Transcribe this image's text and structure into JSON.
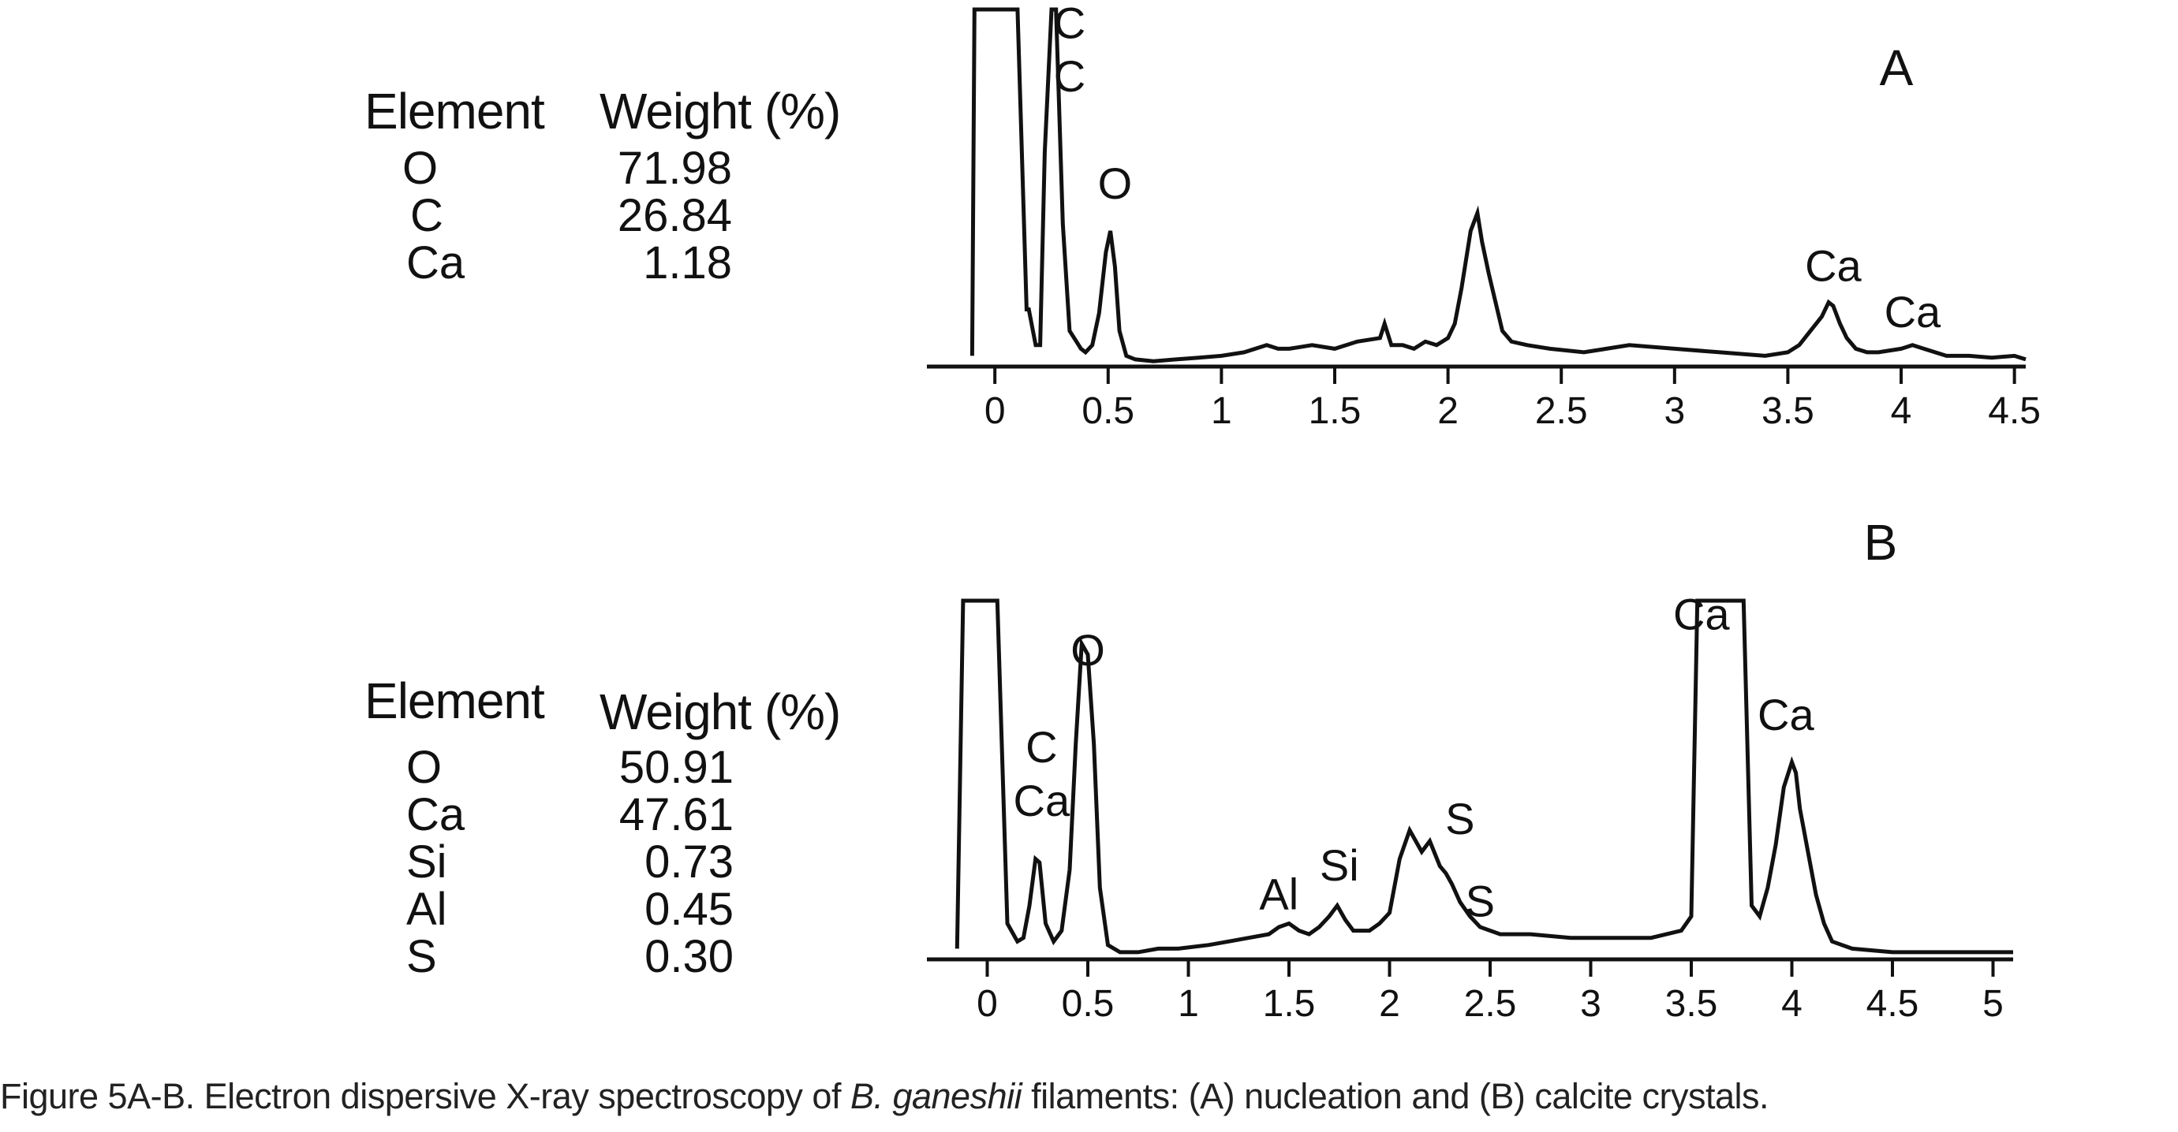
{
  "caption": {
    "prefix": "Figure 5A-B. Electron dispersive X-ray spectroscopy of ",
    "species": "B. ganeshii",
    "suffix": " filaments: (A) nucleation and (B) calcite crystals."
  },
  "chart_data": [
    {
      "type": "line",
      "panel_label": "A",
      "table": {
        "headers": [
          "Element",
          "Weight (%)"
        ],
        "rows": [
          {
            "element": "O",
            "weight": "71.98"
          },
          {
            "element": "C",
            "weight": "26.84"
          },
          {
            "element": "Ca",
            "weight": "1.18"
          }
        ]
      },
      "xlim": [
        -0.3,
        4.55
      ],
      "ylim": [
        0,
        100
      ],
      "xticks": [
        "0",
        "0.5",
        "1",
        "1.5",
        "2",
        "2.5",
        "3",
        "3.5",
        "4",
        "4.5"
      ],
      "xtick_values": [
        0,
        0.5,
        1,
        1.5,
        2,
        2.5,
        3,
        3.5,
        4,
        4.5
      ],
      "peak_labels": [
        {
          "text": "C",
          "x": 0.33,
          "y": 92
        },
        {
          "text": "C",
          "x": 0.33,
          "y": 77
        },
        {
          "text": "O",
          "x": 0.53,
          "y": 47
        },
        {
          "text": "Ca",
          "x": 3.7,
          "y": 24
        },
        {
          "text": "Ca",
          "x": 4.05,
          "y": 11
        }
      ],
      "x": [
        -0.1,
        -0.09,
        0.0,
        0.1,
        0.14,
        0.15,
        0.18,
        0.2,
        0.22,
        0.25,
        0.27,
        0.3,
        0.33,
        0.36,
        0.38,
        0.4,
        0.43,
        0.46,
        0.49,
        0.51,
        0.53,
        0.55,
        0.58,
        0.62,
        0.7,
        0.8,
        0.9,
        1.0,
        1.1,
        1.2,
        1.25,
        1.3,
        1.4,
        1.5,
        1.6,
        1.7,
        1.72,
        1.75,
        1.8,
        1.85,
        1.9,
        1.95,
        2.0,
        2.03,
        2.06,
        2.1,
        2.13,
        2.15,
        2.18,
        2.21,
        2.24,
        2.28,
        2.35,
        2.45,
        2.6,
        2.8,
        3.0,
        3.2,
        3.4,
        3.5,
        3.55,
        3.6,
        3.65,
        3.68,
        3.7,
        3.73,
        3.76,
        3.8,
        3.85,
        3.9,
        4.0,
        4.05,
        4.1,
        4.2,
        4.3,
        4.4,
        4.5,
        4.55
      ],
      "y": [
        3,
        100,
        100,
        100,
        16,
        16,
        6,
        6,
        60,
        100,
        100,
        40,
        10,
        7,
        5,
        4,
        6,
        15,
        32,
        38,
        28,
        10,
        3,
        2,
        1.5,
        2,
        2.5,
        3,
        4,
        6,
        5,
        5,
        6,
        5,
        7,
        8,
        12,
        6,
        6,
        5,
        7,
        6,
        8,
        12,
        22,
        38,
        43,
        35,
        26,
        18,
        10,
        7,
        6,
        5,
        4,
        6,
        5,
        4,
        3,
        4,
        6,
        10,
        14,
        18,
        17,
        12,
        8,
        5,
        4,
        4,
        5,
        6,
        5,
        3,
        3,
        2.5,
        3,
        2
      ]
    },
    {
      "type": "line",
      "panel_label": "B",
      "table": {
        "headers": [
          "Element",
          "Weight (%)"
        ],
        "rows": [
          {
            "element": "O",
            "weight": "50.91"
          },
          {
            "element": "Ca",
            "weight": "47.61"
          },
          {
            "element": "Si",
            "weight": "0.73"
          },
          {
            "element": "Al",
            "weight": "0.45"
          },
          {
            "element": "S",
            "weight": "0.30"
          }
        ]
      },
      "xlim": [
        -0.3,
        5.1
      ],
      "ylim": [
        0,
        100
      ],
      "xticks": [
        "0",
        "0.5",
        "1",
        "1.5",
        "2",
        "2.5",
        "3",
        "3.5",
        "4",
        "4.5",
        "5"
      ],
      "xtick_values": [
        0,
        0.5,
        1,
        1.5,
        2,
        2.5,
        3,
        3.5,
        4,
        4.5,
        5
      ],
      "peak_labels": [
        {
          "text": "Ca",
          "x": 3.55,
          "y": 92
        },
        {
          "text": "Ca",
          "x": 3.97,
          "y": 64
        },
        {
          "text": "O",
          "x": 0.5,
          "y": 82
        },
        {
          "text": "C",
          "x": 0.27,
          "y": 55
        },
        {
          "text": "Ca",
          "x": 0.27,
          "y": 40
        },
        {
          "text": "Al",
          "x": 1.45,
          "y": 14
        },
        {
          "text": "Si",
          "x": 1.75,
          "y": 22
        },
        {
          "text": "S",
          "x": 2.35,
          "y": 35
        },
        {
          "text": "S",
          "x": 2.45,
          "y": 12
        }
      ],
      "x": [
        -0.15,
        -0.12,
        -0.05,
        0.0,
        0.05,
        0.1,
        0.15,
        0.18,
        0.21,
        0.24,
        0.26,
        0.29,
        0.33,
        0.37,
        0.41,
        0.44,
        0.47,
        0.5,
        0.53,
        0.56,
        0.6,
        0.66,
        0.75,
        0.85,
        0.95,
        1.1,
        1.2,
        1.3,
        1.4,
        1.45,
        1.5,
        1.55,
        1.6,
        1.65,
        1.7,
        1.74,
        1.78,
        1.82,
        1.9,
        1.95,
        2.0,
        2.05,
        2.1,
        2.13,
        2.16,
        2.2,
        2.25,
        2.28,
        2.31,
        2.35,
        2.4,
        2.45,
        2.55,
        2.7,
        2.9,
        3.1,
        3.3,
        3.45,
        3.5,
        3.53,
        3.56,
        3.6,
        3.64,
        3.68,
        3.72,
        3.76,
        3.8,
        3.84,
        3.88,
        3.92,
        3.96,
        4.0,
        4.02,
        4.04,
        4.08,
        4.12,
        4.16,
        4.2,
        4.3,
        4.5,
        4.7,
        4.9,
        5.1
      ],
      "y": [
        3,
        100,
        100,
        100,
        100,
        10,
        5,
        6,
        15,
        28,
        27,
        10,
        5,
        8,
        25,
        60,
        88,
        85,
        60,
        20,
        4,
        2,
        2,
        3,
        3,
        4,
        5,
        6,
        7,
        9,
        10,
        8,
        7,
        9,
        12,
        15,
        11,
        8,
        8,
        10,
        13,
        28,
        36,
        33,
        30,
        33,
        26,
        24,
        21,
        16,
        12,
        9,
        7,
        7,
        6,
        6,
        6,
        8,
        12,
        100,
        100,
        100,
        100,
        100,
        100,
        100,
        15,
        12,
        20,
        32,
        48,
        55,
        52,
        42,
        30,
        18,
        10,
        5,
        3,
        2,
        2,
        2,
        2
      ]
    }
  ]
}
